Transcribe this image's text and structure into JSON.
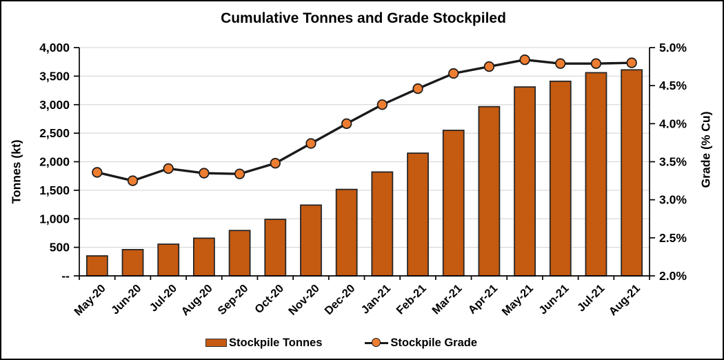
{
  "chart_data": {
    "type": "combo-bar-line",
    "title": "Cumulative Tonnes and Grade Stockpiled",
    "categories": [
      "May-20",
      "Jun-20",
      "Jul-20",
      "Aug-20",
      "Sep-20",
      "Oct-20",
      "Nov-20",
      "Dec-20",
      "Jan-21",
      "Feb-21",
      "Mar-21",
      "Apr-21",
      "May-21",
      "Jun-21",
      "Jul-21",
      "Aug-21"
    ],
    "series": [
      {
        "name": "Stockpile Tonnes",
        "type": "bar",
        "axis": "left",
        "values": [
          350,
          460,
          555,
          660,
          795,
          990,
          1240,
          1515,
          1820,
          2150,
          2550,
          2965,
          3310,
          3410,
          3560,
          3610
        ]
      },
      {
        "name": "Stockpile Grade",
        "type": "line",
        "axis": "right",
        "values": [
          3.36,
          3.25,
          3.41,
          3.35,
          3.34,
          3.48,
          3.74,
          4.0,
          4.25,
          4.46,
          4.66,
          4.75,
          4.84,
          4.79,
          4.79,
          4.8
        ]
      }
    ],
    "axes": {
      "left": {
        "title": "Tonnes (kt)",
        "min": 0,
        "max": 4000,
        "tick_values": [
          0,
          500,
          1000,
          1500,
          2000,
          2500,
          3000,
          3500,
          4000
        ],
        "tick_labels": [
          "--",
          "500",
          "1,000",
          "1,500",
          "2,000",
          "2,500",
          "3,000",
          "3,500",
          "4,000"
        ]
      },
      "right": {
        "title": "Grade (% Cu)",
        "min": 2.0,
        "max": 5.0,
        "tick_values": [
          2.0,
          2.5,
          3.0,
          3.5,
          4.0,
          4.5,
          5.0
        ],
        "tick_labels": [
          "2.0%",
          "2.5%",
          "3.0%",
          "3.5%",
          "4.0%",
          "4.5%",
          "5.0%"
        ]
      }
    },
    "legend_position": "bottom",
    "grid": true,
    "colors": {
      "bar_fill": "#C55A11",
      "bar_border": "#262626",
      "line": "#1A1A1A",
      "marker_fill": "#ED7D31",
      "marker_border": "#1A1A1A",
      "gridline": "#D9D9D9",
      "axis": "#000000",
      "text": "#000000",
      "background": "#FFFFFF"
    }
  }
}
